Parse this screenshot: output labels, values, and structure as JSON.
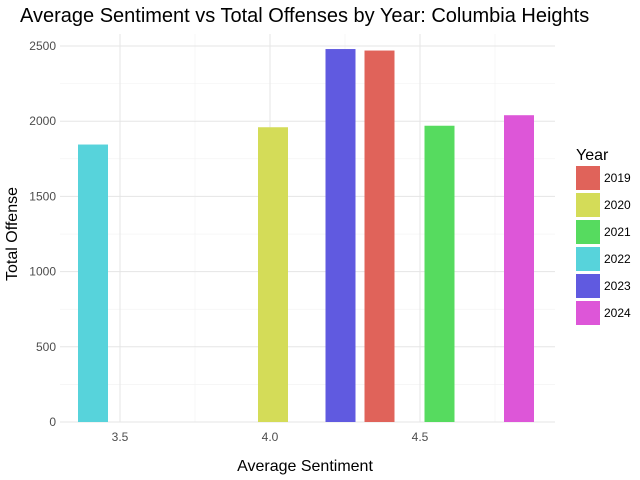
{
  "chart_data": {
    "type": "bar",
    "title": "Average Sentiment vs Total Offenses by Year: Columbia Heights",
    "xlabel": "Average Sentiment",
    "ylabel": "Total Offense",
    "xlim": [
      3.3,
      4.95
    ],
    "ylim": [
      0,
      2580
    ],
    "x_ticks": [
      "3.5",
      "4.0",
      "4.5"
    ],
    "y_ticks": [
      "0",
      "500",
      "1000",
      "1500",
      "2000",
      "2500"
    ],
    "grid": true,
    "legend": {
      "title": "Year",
      "position": "right"
    },
    "series": [
      {
        "name": "2019",
        "x": 4.365,
        "value": 2470,
        "color": "#E0635A"
      },
      {
        "name": "2020",
        "x": 4.01,
        "value": 1960,
        "color": "#D4DC58"
      },
      {
        "name": "2021",
        "x": 4.565,
        "value": 1970,
        "color": "#56DB5F"
      },
      {
        "name": "2022",
        "x": 3.41,
        "value": 1845,
        "color": "#57D3DB"
      },
      {
        "name": "2023",
        "x": 4.235,
        "value": 2480,
        "color": "#605AE0"
      },
      {
        "name": "2024",
        "x": 4.83,
        "value": 2040,
        "color": "#DD56D8"
      }
    ]
  }
}
